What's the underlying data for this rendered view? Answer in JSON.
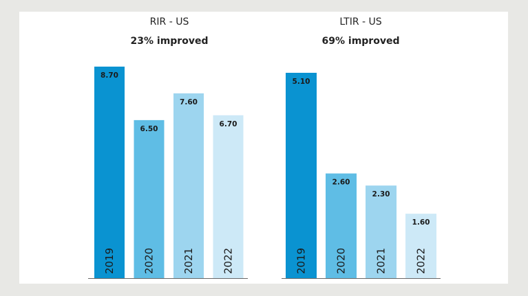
{
  "chart_data": [
    {
      "type": "bar",
      "title": "RIR - US",
      "subtitle": "23% improved",
      "categories": [
        "2019",
        "2020",
        "2021",
        "2022"
      ],
      "values": [
        8.7,
        6.5,
        7.6,
        6.7
      ],
      "value_labels": [
        "8.70",
        "6.50",
        "7.60",
        "6.70"
      ],
      "colors": [
        "#0a93d1",
        "#5fbde5",
        "#9dd5ef",
        "#cde9f7"
      ],
      "ylim": [
        0,
        8.7
      ],
      "grid": false,
      "legend": "none"
    },
    {
      "type": "bar",
      "title": "LTIR - US",
      "subtitle": "69% improved",
      "categories": [
        "2019",
        "2020",
        "2021",
        "2022"
      ],
      "values": [
        5.1,
        2.6,
        2.3,
        1.6
      ],
      "value_labels": [
        "5.10",
        "2.60",
        "2.30",
        "1.60"
      ],
      "colors": [
        "#0a93d1",
        "#5fbde5",
        "#9dd5ef",
        "#cde9f7"
      ],
      "ylim": [
        0,
        5.1
      ],
      "grid": false,
      "legend": "none"
    }
  ]
}
